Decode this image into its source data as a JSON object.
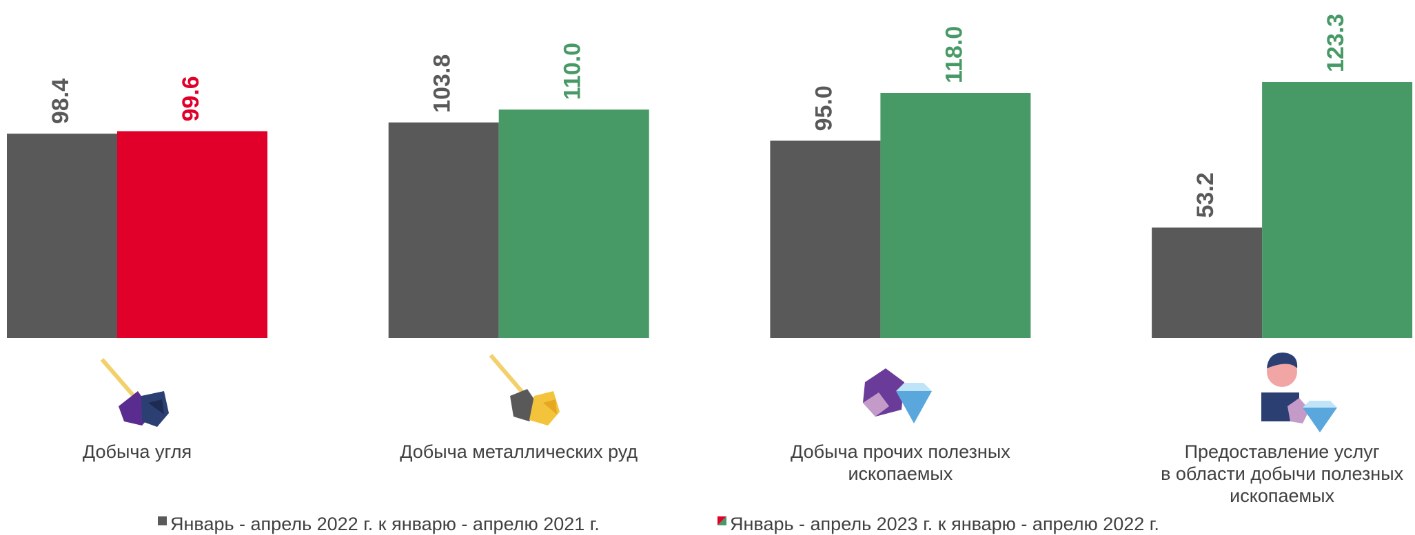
{
  "chart_data": {
    "type": "bar",
    "categories": [
      "Добыча угля",
      "Добыча металлических руд",
      "Добыча прочих полезных ископаемых",
      "Предоставление услуг\nв области добычи полезных\nископаемых"
    ],
    "series": [
      {
        "name": "Январь - апрель 2022 г. к январю - апрелю 2021 г.",
        "color": "#595959",
        "values": [
          98.4,
          103.8,
          95.0,
          53.2
        ],
        "value_labels": [
          "98.4",
          "103.8",
          "95.0",
          "53.2"
        ]
      },
      {
        "name": "Январь - апрель 2023 г. к январю - апрелю 2022 г.",
        "color": "#479966",
        "colors": [
          "#e0002a",
          "#479966",
          "#479966",
          "#479966"
        ],
        "values": [
          99.6,
          110.0,
          118.0,
          123.3
        ],
        "value_labels": [
          "99.6",
          "110.0",
          "118.0",
          "123.3"
        ]
      }
    ]
  }
}
